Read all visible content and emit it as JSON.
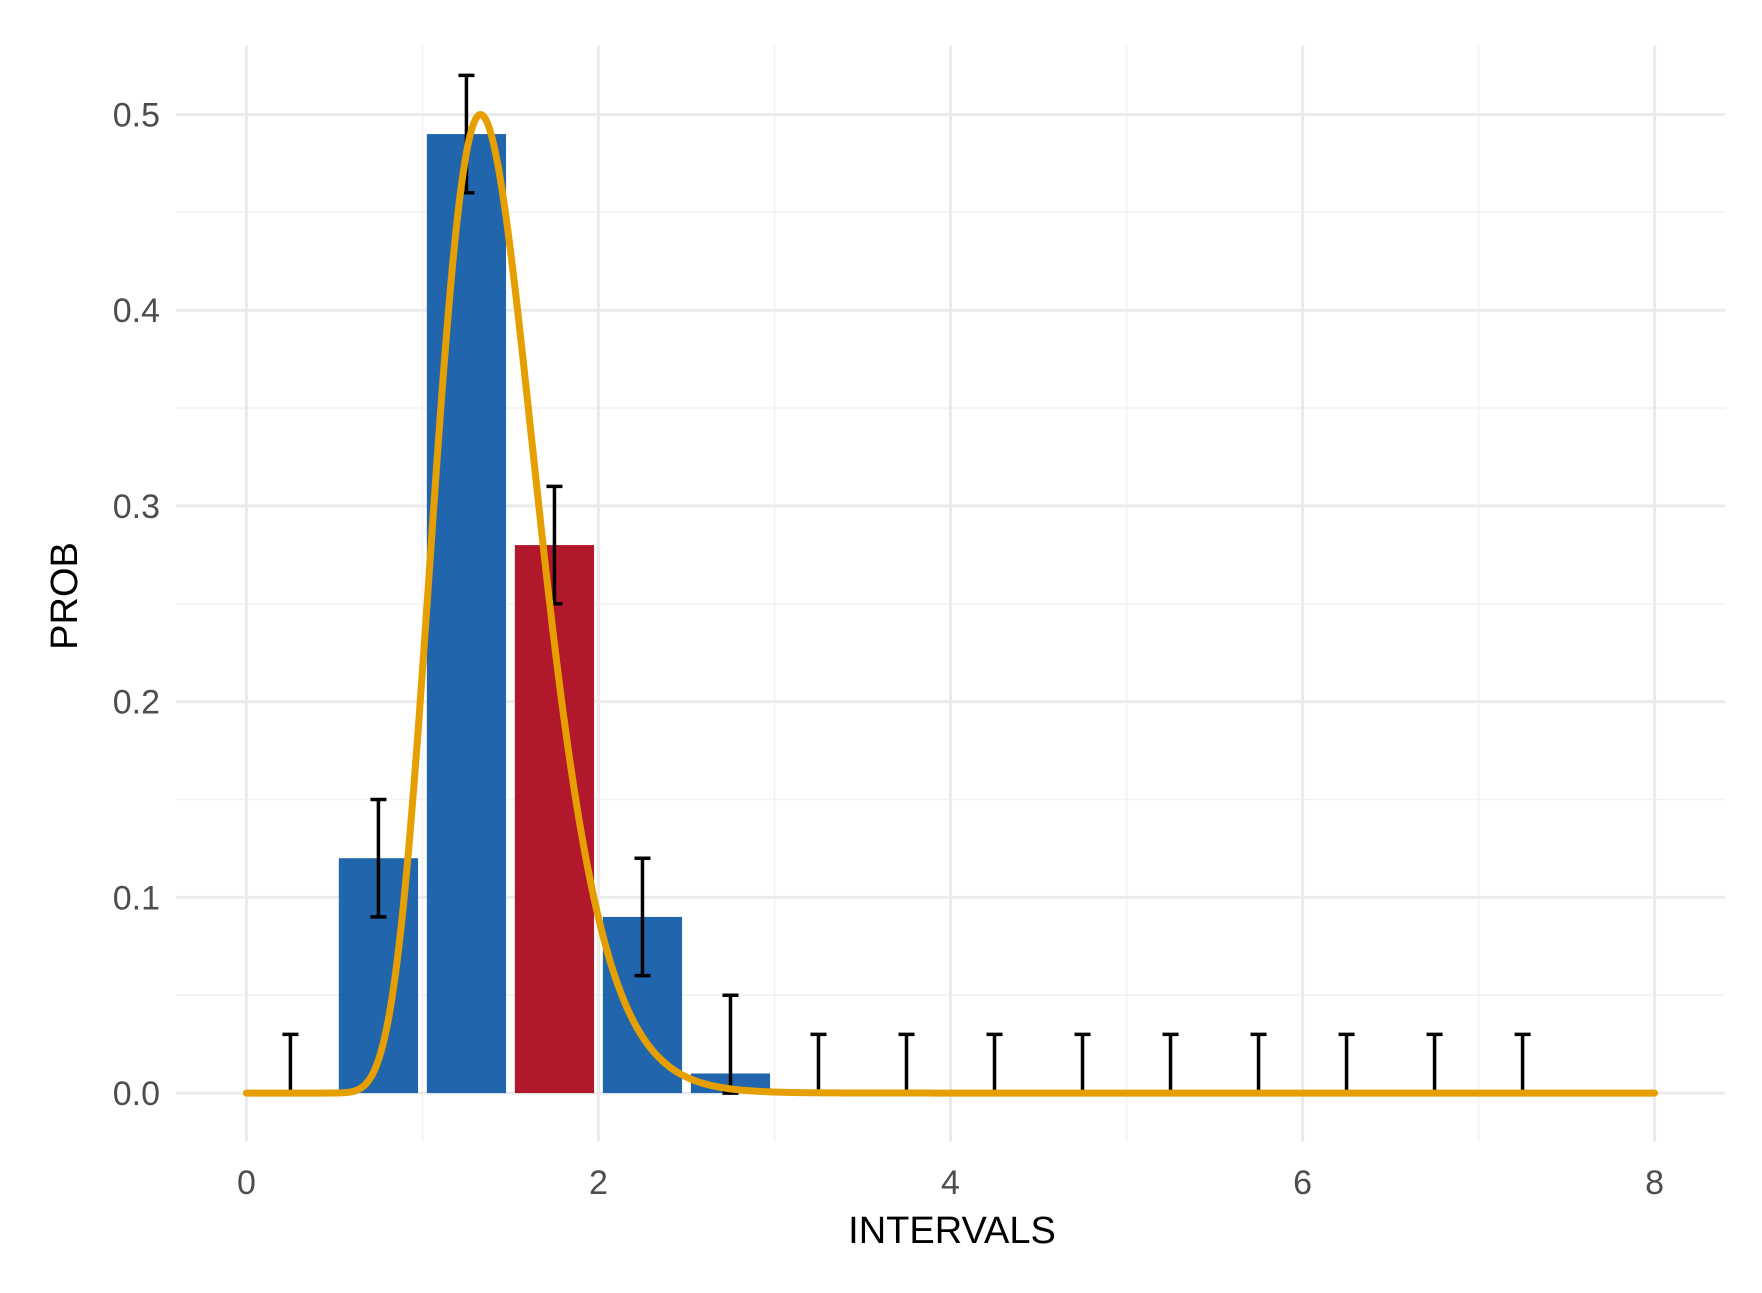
{
  "chart_data": {
    "type": "bar",
    "xlabel": "INTERVALS",
    "ylabel": "PROB",
    "xlim": [
      -0.4,
      8.4
    ],
    "ylim": [
      -0.025,
      0.535
    ],
    "x_ticks": [
      0,
      2,
      4,
      6,
      8
    ],
    "x_tick_labels": [
      "0",
      "2",
      "4",
      "6",
      "8"
    ],
    "y_ticks": [
      0.0,
      0.1,
      0.2,
      0.3,
      0.4,
      0.5
    ],
    "y_tick_labels": [
      "0.0",
      "0.1",
      "0.2",
      "0.3",
      "0.4",
      "0.5"
    ],
    "grid": true,
    "bin_width": 0.5,
    "bars": [
      {
        "x": 0.25,
        "value": 0.0,
        "err_low": 0.0,
        "err_high": 0.03,
        "highlight": false
      },
      {
        "x": 0.75,
        "value": 0.12,
        "err_low": 0.09,
        "err_high": 0.15,
        "highlight": false
      },
      {
        "x": 1.25,
        "value": 0.49,
        "err_low": 0.46,
        "err_high": 0.52,
        "highlight": false
      },
      {
        "x": 1.75,
        "value": 0.28,
        "err_low": 0.25,
        "err_high": 0.31,
        "highlight": true
      },
      {
        "x": 2.25,
        "value": 0.09,
        "err_low": 0.06,
        "err_high": 0.12,
        "highlight": false
      },
      {
        "x": 2.75,
        "value": 0.01,
        "err_low": 0.0,
        "err_high": 0.05,
        "highlight": false
      },
      {
        "x": 3.25,
        "value": 0.0,
        "err_low": 0.0,
        "err_high": 0.03,
        "highlight": false
      },
      {
        "x": 3.75,
        "value": 0.0,
        "err_low": 0.0,
        "err_high": 0.03,
        "highlight": false
      },
      {
        "x": 4.25,
        "value": 0.0,
        "err_low": 0.0,
        "err_high": 0.03,
        "highlight": false
      },
      {
        "x": 4.75,
        "value": 0.0,
        "err_low": 0.0,
        "err_high": 0.03,
        "highlight": false
      },
      {
        "x": 5.25,
        "value": 0.0,
        "err_low": 0.0,
        "err_high": 0.03,
        "highlight": false
      },
      {
        "x": 5.75,
        "value": 0.0,
        "err_low": 0.0,
        "err_high": 0.03,
        "highlight": false
      },
      {
        "x": 6.25,
        "value": 0.0,
        "err_low": 0.0,
        "err_high": 0.03,
        "highlight": false
      },
      {
        "x": 6.75,
        "value": 0.0,
        "err_low": 0.0,
        "err_high": 0.03,
        "highlight": false
      },
      {
        "x": 7.25,
        "value": 0.0,
        "err_low": 0.0,
        "err_high": 0.03,
        "highlight": false
      }
    ],
    "curve": {
      "type": "lognormal-density",
      "peak_x": 1.33,
      "peak_y": 0.5,
      "x_range": [
        0,
        8
      ]
    },
    "colors": {
      "bar": "#2166ac",
      "bar_highlight": "#b2182b",
      "curve": "#e69f00",
      "errorbar": "#000000"
    }
  }
}
